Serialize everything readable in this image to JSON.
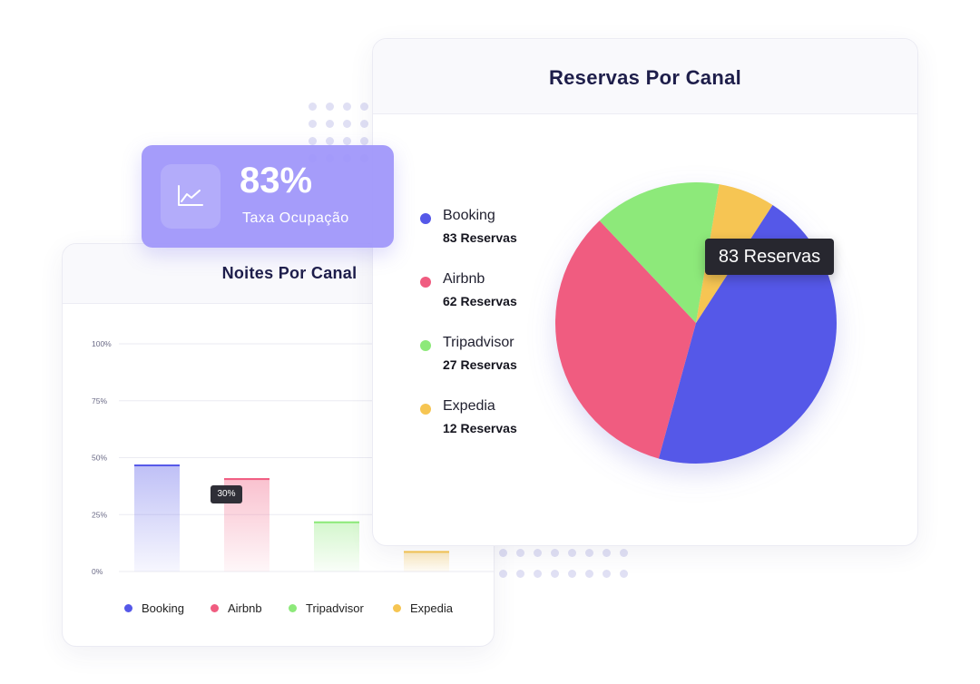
{
  "stat_card": {
    "value": "83%",
    "label": "Taxa Ocupação",
    "icon": "line-chart-icon"
  },
  "colors": {
    "Booking": "#5558e8",
    "Airbnb": "#f05c80",
    "Tripadvisor": "#8de97a",
    "Expedia": "#f6c552"
  },
  "chart_data": [
    {
      "type": "bar",
      "title": "Noites Por Canal",
      "categories": [
        "Booking",
        "Airbnb",
        "Tripadvisor",
        "Expedia"
      ],
      "values": [
        47,
        41,
        22,
        9
      ],
      "y_ticks": [
        "100%",
        "75%",
        "50%",
        "25%",
        "0%"
      ],
      "y_tick_values": [
        100,
        75,
        50,
        25,
        0
      ],
      "ylim": [
        0,
        100
      ],
      "grid": true,
      "legend": [
        "Booking",
        "Airbnb",
        "Tripadvisor",
        "Expedia"
      ],
      "legend_position": "bottom",
      "tooltip": "30%"
    },
    {
      "type": "pie",
      "title": "Reservas Por Canal",
      "slices": [
        {
          "label": "Booking",
          "count_text": "83 Reservas",
          "value": 83
        },
        {
          "label": "Airbnb",
          "count_text": "62 Reservas",
          "value": 62
        },
        {
          "label": "Tripadvisor",
          "count_text": "27 Reservas",
          "value": 27
        },
        {
          "label": "Expedia",
          "count_text": "12 Reservas",
          "value": 12
        }
      ],
      "legend_position": "left",
      "tooltip": "83 Reservas"
    }
  ]
}
